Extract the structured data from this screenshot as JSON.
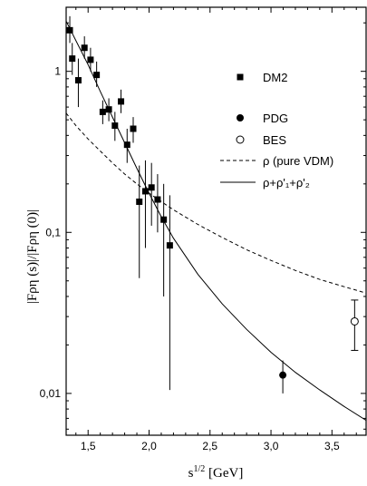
{
  "chart_data": {
    "type": "scatter",
    "xlabel_base": "s",
    "xlabel_sup": "1/2",
    "xlabel_unit": " [GeV]",
    "ylabel": "|Fρη (s)|/|Fρη (0)|",
    "xlim": [
      1.32,
      3.78
    ],
    "ylim": [
      0.0055,
      2.5
    ],
    "yscale": "log",
    "x_ticks": [
      {
        "value": 1.5,
        "label": "1,5"
      },
      {
        "value": 2.0,
        "label": "2,0"
      },
      {
        "value": 2.5,
        "label": "2,5"
      },
      {
        "value": 3.0,
        "label": "3,0"
      },
      {
        "value": 3.5,
        "label": "3,5"
      }
    ],
    "y_ticks": [
      {
        "value": 1,
        "label": "1"
      },
      {
        "value": 0.1,
        "label": "0,1"
      },
      {
        "value": 0.01,
        "label": "0,01"
      }
    ],
    "legend_position": "right",
    "series": [
      {
        "name": "DM2",
        "marker": "filled-square",
        "points": [
          {
            "x": 1.35,
            "y": 1.8,
            "lo": 1.5,
            "hi": 2.2
          },
          {
            "x": 1.37,
            "y": 1.2,
            "lo": 0.95,
            "hi": 1.5
          },
          {
            "x": 1.42,
            "y": 0.88,
            "lo": 0.6,
            "hi": 1.2
          },
          {
            "x": 1.47,
            "y": 1.4,
            "lo": 1.2,
            "hi": 1.65
          },
          {
            "x": 1.52,
            "y": 1.18,
            "lo": 1.0,
            "hi": 1.4
          },
          {
            "x": 1.57,
            "y": 0.95,
            "lo": 0.8,
            "hi": 1.15
          },
          {
            "x": 1.62,
            "y": 0.56,
            "lo": 0.47,
            "hi": 0.66
          },
          {
            "x": 1.67,
            "y": 0.58,
            "lo": 0.49,
            "hi": 0.68
          },
          {
            "x": 1.72,
            "y": 0.46,
            "lo": 0.37,
            "hi": 0.56
          },
          {
            "x": 1.77,
            "y": 0.65,
            "lo": 0.55,
            "hi": 0.77
          },
          {
            "x": 1.82,
            "y": 0.35,
            "lo": 0.27,
            "hi": 0.44
          },
          {
            "x": 1.87,
            "y": 0.44,
            "lo": 0.36,
            "hi": 0.52
          },
          {
            "x": 1.92,
            "y": 0.155,
            "lo": 0.052,
            "hi": 0.26
          },
          {
            "x": 1.97,
            "y": 0.18,
            "lo": 0.08,
            "hi": 0.28
          },
          {
            "x": 2.02,
            "y": 0.19,
            "lo": 0.11,
            "hi": 0.27
          },
          {
            "x": 2.07,
            "y": 0.16,
            "lo": 0.1,
            "hi": 0.23
          },
          {
            "x": 2.12,
            "y": 0.12,
            "lo": 0.04,
            "hi": 0.2
          },
          {
            "x": 2.17,
            "y": 0.083,
            "lo": 0.0105,
            "hi": 0.17
          }
        ]
      },
      {
        "name": "PDG",
        "marker": "filled-circle",
        "points": [
          {
            "x": 3.097,
            "y": 0.013,
            "lo": 0.01,
            "hi": 0.016
          }
        ]
      },
      {
        "name": "BES",
        "marker": "open-circle",
        "points": [
          {
            "x": 3.686,
            "y": 0.028,
            "lo": 0.0185,
            "hi": 0.038
          }
        ]
      }
    ],
    "curves": [
      {
        "name": "ρ (pure VDM)",
        "style": "dashed",
        "x": [
          1.32,
          1.4,
          1.5,
          1.6,
          1.7,
          1.8,
          1.9,
          2.0,
          2.2,
          2.4,
          2.6,
          2.8,
          3.0,
          3.2,
          3.4,
          3.6,
          3.78
        ],
        "y": [
          0.55,
          0.46,
          0.38,
          0.32,
          0.27,
          0.23,
          0.2,
          0.175,
          0.138,
          0.112,
          0.093,
          0.078,
          0.067,
          0.058,
          0.051,
          0.046,
          0.042
        ]
      },
      {
        "name": "ρ+ρ'₁+ρ'₂",
        "style": "solid",
        "x": [
          1.32,
          1.4,
          1.5,
          1.6,
          1.7,
          1.8,
          1.9,
          2.0,
          2.1,
          2.2,
          2.4,
          2.6,
          2.8,
          3.0,
          3.2,
          3.4,
          3.6,
          3.78
        ],
        "y": [
          2.05,
          1.55,
          1.1,
          0.75,
          0.52,
          0.36,
          0.25,
          0.175,
          0.125,
          0.092,
          0.055,
          0.036,
          0.025,
          0.018,
          0.0135,
          0.0105,
          0.0083,
          0.0068
        ]
      }
    ]
  }
}
